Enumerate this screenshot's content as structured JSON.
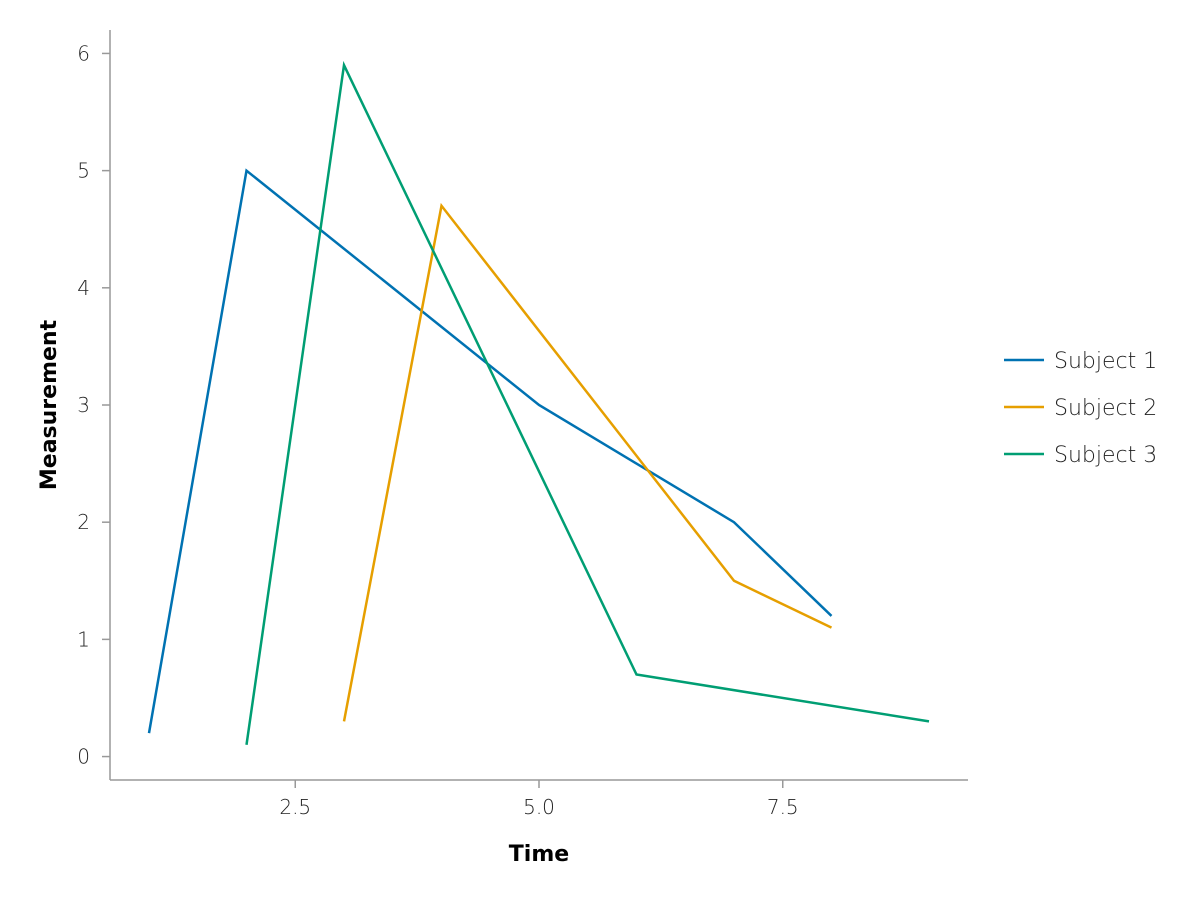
{
  "chart_data": {
    "type": "line",
    "title": "",
    "xlabel": "Time",
    "ylabel": "Measurement",
    "xlim": [
      0.6,
      9.4
    ],
    "ylim": [
      -0.2,
      6.2
    ],
    "xticks": [
      2.5,
      5.0,
      7.5
    ],
    "xtick_labels": [
      "2.5",
      "5.0",
      "7.5"
    ],
    "yticks": [
      0,
      1,
      2,
      3,
      4,
      5,
      6
    ],
    "ytick_labels": [
      "0",
      "1",
      "2",
      "3",
      "4",
      "5",
      "6"
    ],
    "grid": false,
    "legend_position": "right",
    "series": [
      {
        "name": "Subject 1",
        "color": "#0072B2",
        "x": [
          1,
          2,
          5,
          7,
          8
        ],
        "y": [
          0.2,
          5.0,
          3.0,
          2.0,
          1.2
        ]
      },
      {
        "name": "Subject 2",
        "color": "#E69F00",
        "x": [
          3,
          4,
          7,
          8
        ],
        "y": [
          0.3,
          4.7,
          1.5,
          1.1
        ]
      },
      {
        "name": "Subject 3",
        "color": "#009E73",
        "x": [
          2,
          3,
          6,
          9
        ],
        "y": [
          0.1,
          5.9,
          0.7,
          0.3
        ]
      }
    ]
  }
}
